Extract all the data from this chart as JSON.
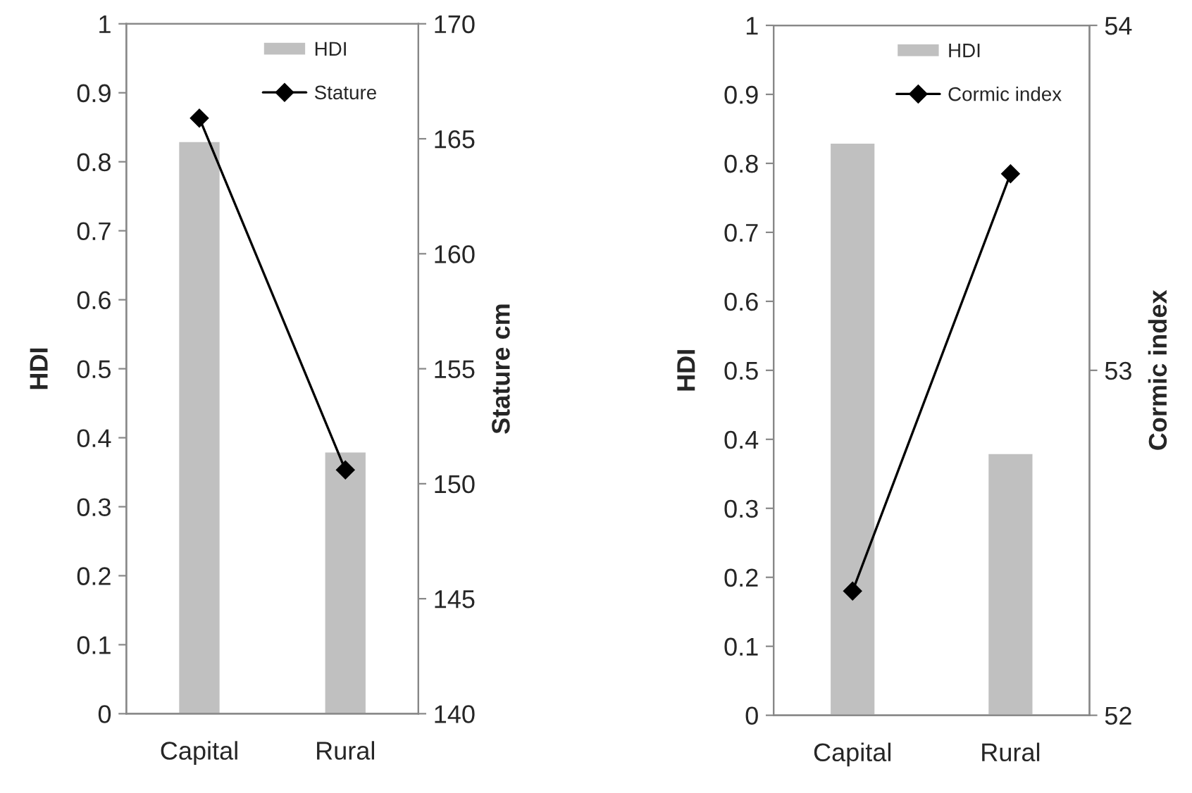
{
  "chart_data": [
    {
      "type": "bar",
      "categories": [
        "Capital",
        "Rural"
      ],
      "ylabel": "HDI",
      "y2label": "Stature cm",
      "ylim": [
        0,
        1
      ],
      "yticks": [
        0,
        0.1,
        0.2,
        0.3,
        0.4,
        0.5,
        0.6,
        0.7,
        0.8,
        0.9,
        1
      ],
      "y2lim": [
        140,
        170
      ],
      "y2ticks": [
        140,
        145,
        150,
        155,
        160,
        165,
        170
      ],
      "legend": "top",
      "grid": false,
      "series": [
        {
          "name": "HDI",
          "type": "bar",
          "color": "#c0c0c0",
          "values": [
            0.83,
            0.38
          ]
        },
        {
          "name": "Stature",
          "type": "line",
          "axis": "y2",
          "color": "#000000",
          "marker": "diamond",
          "values": [
            165.9,
            150.6
          ]
        }
      ]
    },
    {
      "type": "bar",
      "categories": [
        "Capital",
        "Rural"
      ],
      "ylabel": "HDI",
      "y2label": "Cormic index",
      "ylim": [
        0,
        1
      ],
      "yticks": [
        0,
        0.1,
        0.2,
        0.3,
        0.4,
        0.5,
        0.6,
        0.7,
        0.8,
        0.9,
        1
      ],
      "y2lim": [
        52,
        54
      ],
      "y2ticks": [
        52,
        53,
        54
      ],
      "legend": "top",
      "grid": false,
      "series": [
        {
          "name": "HDI",
          "type": "bar",
          "color": "#c0c0c0",
          "values": [
            0.83,
            0.38
          ]
        },
        {
          "name": "Cormic index",
          "type": "line",
          "axis": "y2",
          "color": "#000000",
          "marker": "diamond",
          "values": [
            52.36,
            53.57
          ]
        }
      ]
    }
  ]
}
